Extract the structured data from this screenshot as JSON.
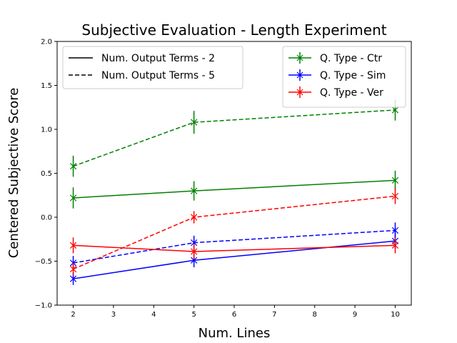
{
  "chart_data": {
    "type": "line",
    "title": "Subjective Evaluation - Length Experiment",
    "xlabel": "Num. Lines",
    "ylabel": "Centered Subjective Score",
    "xlim": [
      1.6,
      10.4
    ],
    "ylim": [
      -1.0,
      2.0
    ],
    "xticks": [
      2,
      3,
      4,
      5,
      6,
      7,
      8,
      9,
      10
    ],
    "yticks": [
      -1.0,
      -0.5,
      0.0,
      0.5,
      1.0,
      1.5,
      2.0
    ],
    "ytick_labels": [
      "−1.0",
      "−0.5",
      "0.0",
      "0.5",
      "1.0",
      "1.5",
      "2.0"
    ],
    "grid": false,
    "x": [
      2,
      5,
      10
    ],
    "colors": {
      "Ctr": "#008000",
      "Sim": "#0000ff",
      "Ver": "#ff0000"
    },
    "series": [
      {
        "qtype": "Ctr",
        "terms": 2,
        "linestyle": "solid",
        "values": [
          0.22,
          0.3,
          0.42
        ],
        "errors": [
          0.12,
          0.11,
          0.11
        ]
      },
      {
        "qtype": "Ctr",
        "terms": 5,
        "linestyle": "dashed",
        "values": [
          0.58,
          1.08,
          1.22
        ],
        "errors": [
          0.12,
          0.13,
          0.12
        ]
      },
      {
        "qtype": "Sim",
        "terms": 2,
        "linestyle": "solid",
        "values": [
          -0.7,
          -0.49,
          -0.27
        ],
        "errors": [
          0.07,
          0.08,
          0.09
        ]
      },
      {
        "qtype": "Sim",
        "terms": 5,
        "linestyle": "dashed",
        "values": [
          -0.52,
          -0.29,
          -0.15
        ],
        "errors": [
          0.08,
          0.08,
          0.09
        ]
      },
      {
        "qtype": "Ver",
        "terms": 2,
        "linestyle": "solid",
        "values": [
          -0.32,
          -0.39,
          -0.32
        ],
        "errors": [
          0.09,
          0.09,
          0.09
        ]
      },
      {
        "qtype": "Ver",
        "terms": 5,
        "linestyle": "dashed",
        "values": [
          -0.59,
          0.0,
          0.24
        ],
        "errors": [
          0.07,
          0.07,
          0.09
        ]
      }
    ],
    "legend_style": {
      "location": "upper-left",
      "entries": [
        {
          "label": "Num. Output Terms - 2",
          "linestyle": "solid"
        },
        {
          "label": "Num. Output Terms - 5",
          "linestyle": "dashed"
        }
      ]
    },
    "legend_color": {
      "location": "upper-right",
      "entries": [
        {
          "label": "Q. Type - Ctr",
          "qtype": "Ctr"
        },
        {
          "label": "Q. Type - Sim",
          "qtype": "Sim"
        },
        {
          "label": "Q. Type - Ver",
          "qtype": "Ver"
        }
      ]
    }
  }
}
